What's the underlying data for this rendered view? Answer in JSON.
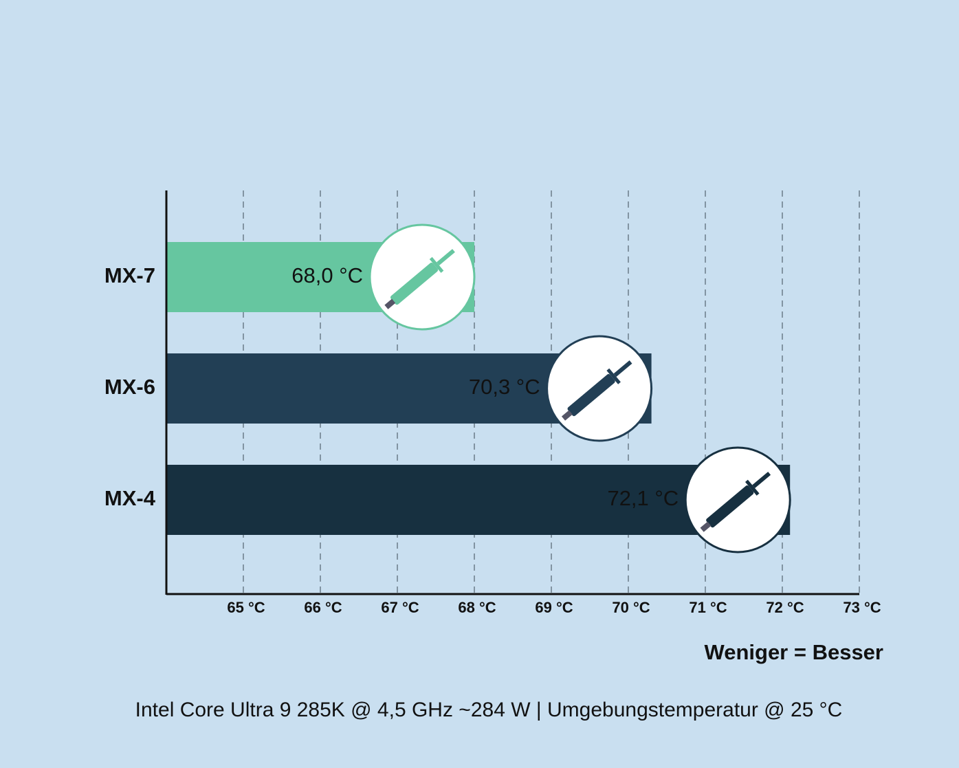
{
  "chart_data": {
    "type": "bar",
    "orientation": "horizontal",
    "categories": [
      "MX-7",
      "MX-6",
      "MX-4"
    ],
    "values": [
      68.0,
      70.3,
      72.1
    ],
    "value_labels": [
      "68,0 °C",
      "70,3 °C",
      "72,1 °C"
    ],
    "colors": [
      "#66c6a0",
      "#223f55",
      "#173040"
    ],
    "value_label_colors": [
      "#1f3b4d",
      "#ffffff",
      "#ffffff"
    ],
    "xlim": [
      64,
      73
    ],
    "xticks": [
      {
        "value": 65,
        "label": "65 °C"
      },
      {
        "value": 66,
        "label": "66 °C"
      },
      {
        "value": 67,
        "label": "67 °C"
      },
      {
        "value": 68,
        "label": "68 °C"
      },
      {
        "value": 69,
        "label": "69 °C"
      },
      {
        "value": 70,
        "label": "70 °C"
      },
      {
        "value": 71,
        "label": "71 °C"
      },
      {
        "value": 72,
        "label": "72 °C"
      },
      {
        "value": 73,
        "label": "73 °C"
      }
    ],
    "grid": true,
    "annotation": "Weniger = Besser",
    "footnote": "Intel Core Ultra 9 285K @ 4,5 GHz ~284 W | Umgebungstemperatur @ 25 °C"
  }
}
